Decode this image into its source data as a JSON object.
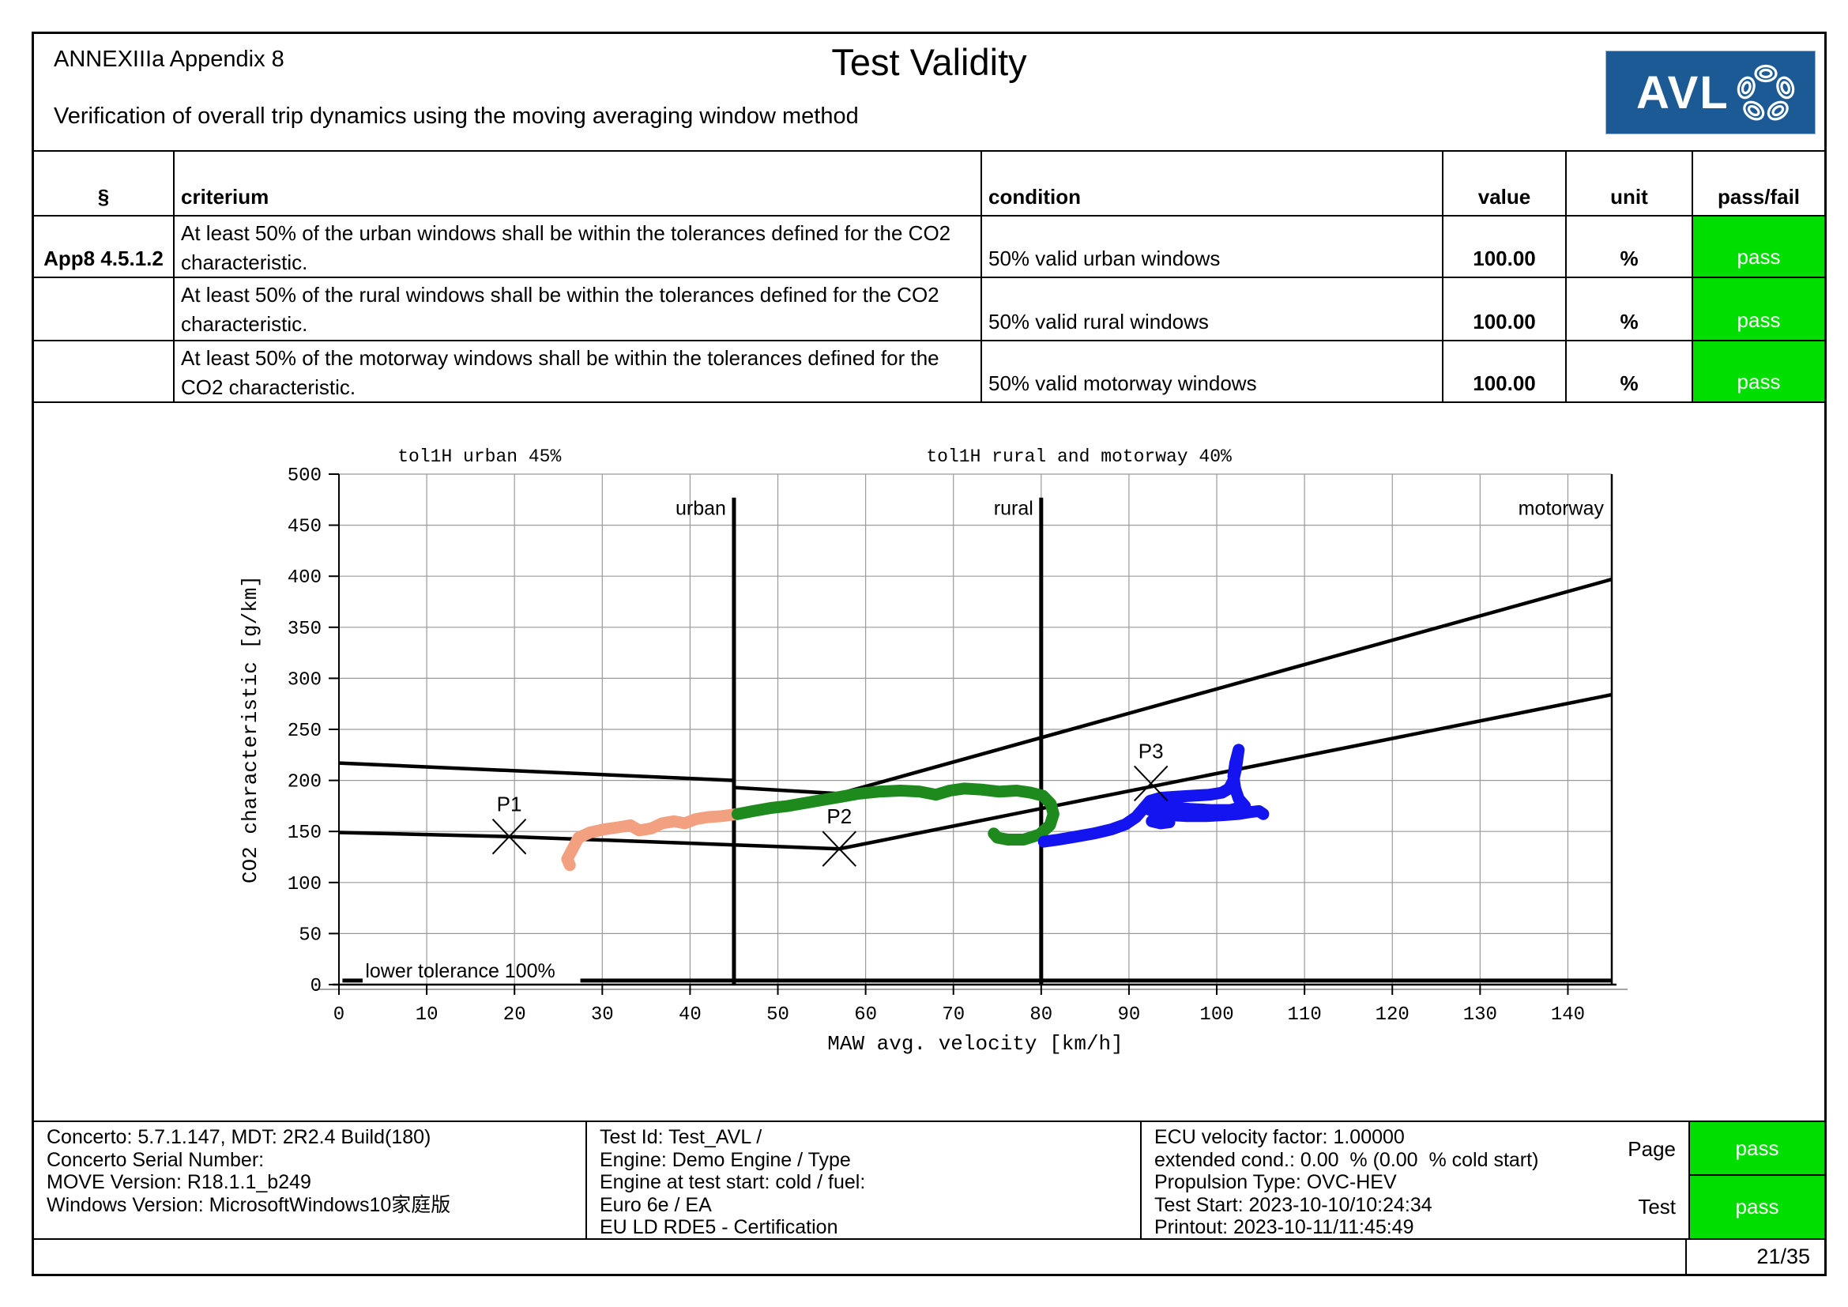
{
  "header": {
    "doc_ref": "ANNEXIIIa Appendix 8",
    "title": "Test Validity",
    "subtitle": "Verification of overall trip dynamics using the moving averaging window method",
    "logo_text": "AVL"
  },
  "colors": {
    "pass_green": "#00DE00",
    "logo_blue": "#1B5A94",
    "urban_points": "#F2A07F",
    "rural_points": "#1E8A1E",
    "motorway_points": "#1414F0",
    "grid_gray": "#9a9a9a"
  },
  "table": {
    "columns": [
      "§",
      "criterium",
      "condition",
      "value",
      "unit",
      "pass/fail"
    ],
    "rows": [
      {
        "section": "App8 4.5.1.2",
        "criterium": "At least 50% of the urban windows shall be within the tolerances defined for the CO2 characteristic.",
        "condition": "50% valid urban windows",
        "value": "100.00",
        "unit": "%",
        "result": "pass"
      },
      {
        "section": "",
        "criterium": "At least 50% of the rural windows shall be within the tolerances defined for the CO2 characteristic.",
        "condition": "50% valid rural windows",
        "value": "100.00",
        "unit": "%",
        "result": "pass"
      },
      {
        "section": "",
        "criterium": "At least 50% of the motorway windows shall be within the tolerances defined for the CO2 characteristic.",
        "condition": "50% valid motorway windows",
        "value": "100.00",
        "unit": "%",
        "result": "pass"
      }
    ]
  },
  "chart_data": {
    "type": "scatter",
    "xlabel": "MAW avg. velocity [km/h]",
    "ylabel": "CO2 characteristic [g/km]",
    "xlim": [
      0,
      145
    ],
    "ylim": [
      0,
      500
    ],
    "xticks": [
      0,
      10,
      20,
      30,
      40,
      50,
      60,
      70,
      80,
      90,
      100,
      110,
      120,
      130,
      140
    ],
    "yticks": [
      0,
      50,
      100,
      150,
      200,
      250,
      300,
      350,
      400,
      450,
      500
    ],
    "grid": true,
    "captions": [
      {
        "text": "tol1H urban 45%",
        "x": 16
      },
      {
        "text": "tol1H rural and motorway 40%",
        "x": 84.3
      }
    ],
    "regions": [
      {
        "label": "urban",
        "boundary_x": 45,
        "draw_line": true
      },
      {
        "label": "rural",
        "boundary_x": 80,
        "draw_line": true
      },
      {
        "label": "motorway",
        "boundary_x": 145,
        "draw_line": false
      }
    ],
    "reference_points": [
      {
        "label": "P1",
        "x": 19.4,
        "y": 145
      },
      {
        "label": "P2",
        "x": 57.0,
        "y": 133
      },
      {
        "label": "P3",
        "x": 92.5,
        "y": 197
      }
    ],
    "lines": [
      {
        "name": "co2-characteristic",
        "points": [
          [
            0,
            149
          ],
          [
            19.4,
            145
          ],
          [
            57,
            133
          ],
          [
            145,
            284
          ]
        ]
      },
      {
        "name": "upper-tolerance-urban",
        "points": [
          [
            0,
            217
          ],
          [
            45,
            200
          ]
        ]
      },
      {
        "name": "upper-tolerance-rural-motorway",
        "points": [
          [
            45,
            193
          ],
          [
            57,
            187
          ],
          [
            145,
            397
          ]
        ]
      }
    ],
    "lower_tolerance": {
      "label": "lower tolerance 100%",
      "label_x": 3,
      "y": 4,
      "segments": [
        [
          0.4,
          2.7
        ],
        [
          27.5,
          145
        ]
      ]
    },
    "series": [
      {
        "name": "urban windows",
        "color": "#F2A07F",
        "points": [
          [
            26.3,
            117
          ],
          [
            26.0,
            123
          ],
          [
            26.5,
            131
          ],
          [
            27.3,
            144
          ],
          [
            28.6,
            149
          ],
          [
            30.2,
            152
          ],
          [
            31.8,
            154
          ],
          [
            33.2,
            156
          ],
          [
            34.2,
            151
          ],
          [
            35.6,
            153
          ],
          [
            36.8,
            158
          ],
          [
            38.2,
            160
          ],
          [
            39.4,
            158
          ],
          [
            40.6,
            162
          ],
          [
            42.0,
            164
          ],
          [
            43.6,
            165
          ],
          [
            45.4,
            167
          ]
        ]
      },
      {
        "name": "rural windows",
        "color": "#1E8A1E",
        "points": [
          [
            45.4,
            167
          ],
          [
            47.2,
            170
          ],
          [
            49.2,
            173
          ],
          [
            51.2,
            175
          ],
          [
            53.2,
            178
          ],
          [
            55.2,
            181
          ],
          [
            57.2,
            184
          ],
          [
            59.2,
            187
          ],
          [
            61.5,
            189
          ],
          [
            64.0,
            190
          ],
          [
            66.2,
            189
          ],
          [
            68.0,
            186
          ],
          [
            69.6,
            190
          ],
          [
            71.2,
            192
          ],
          [
            73.2,
            191
          ],
          [
            75.2,
            189
          ],
          [
            77.2,
            190
          ],
          [
            78.8,
            188
          ],
          [
            80.2,
            185
          ],
          [
            81.1,
            177
          ],
          [
            81.4,
            167
          ],
          [
            81.0,
            156
          ],
          [
            79.8,
            147
          ],
          [
            78.0,
            142
          ],
          [
            76.2,
            142
          ],
          [
            75.0,
            144
          ],
          [
            74.6,
            148
          ]
        ]
      },
      {
        "name": "motorway windows",
        "color": "#1414F0",
        "points": [
          [
            80.3,
            140
          ],
          [
            82.0,
            142
          ],
          [
            84.0,
            145
          ],
          [
            86.0,
            148
          ],
          [
            88.0,
            152
          ],
          [
            89.6,
            157
          ],
          [
            90.8,
            164
          ],
          [
            91.6,
            172
          ],
          [
            92.4,
            180
          ],
          [
            93.6,
            183
          ],
          [
            95.2,
            184
          ],
          [
            97.2,
            185
          ],
          [
            99.2,
            186
          ],
          [
            100.6,
            188
          ],
          [
            101.4,
            192
          ],
          [
            101.9,
            200
          ],
          [
            102.2,
            212
          ],
          [
            102.4,
            224
          ],
          [
            102.5,
            230
          ],
          [
            102.1,
            217
          ],
          [
            101.9,
            204
          ],
          [
            102.1,
            192
          ],
          [
            102.5,
            182
          ],
          [
            103.2,
            175
          ],
          [
            101.6,
            171
          ],
          [
            99.4,
            171
          ],
          [
            97.0,
            172
          ],
          [
            94.8,
            174
          ],
          [
            93.2,
            175
          ],
          [
            92.2,
            172
          ],
          [
            93.0,
            168
          ],
          [
            94.6,
            166
          ],
          [
            96.6,
            165
          ],
          [
            98.8,
            165
          ],
          [
            100.8,
            166
          ],
          [
            102.4,
            167
          ],
          [
            103.8,
            169
          ],
          [
            104.8,
            170
          ],
          [
            105.3,
            167
          ]
        ]
      },
      {
        "name": "motorway windows loop",
        "color": "#1414F0",
        "points": [
          [
            92.6,
            160
          ],
          [
            93.6,
            158
          ],
          [
            94.6,
            159
          ]
        ]
      }
    ]
  },
  "footer": {
    "left_lines": [
      "Concerto: 5.7.1.147, MDT: 2R2.4 Build(180)",
      "Concerto Serial Number:",
      "MOVE Version: R18.1.1_b249",
      "Windows Version: MicrosoftWindows10家庭版"
    ],
    "mid_lines": [
      "Test Id: Test_AVL /",
      "Engine: Demo Engine / Type",
      "Engine at test start: cold / fuel:",
      "Euro 6e / EA",
      "EU LD RDE5 - Certification"
    ],
    "right_lines": [
      "ECU velocity factor: 1.00000",
      "extended cond.: 0.00  % (0.00  % cold start)",
      "Propulsion Type: OVC-HEV",
      "Test Start: 2023-10-10/10:24:34",
      "Printout: 2023-10-11/11:45:49"
    ],
    "page_label": "Page",
    "test_label": "Test",
    "page_result": "pass",
    "test_result": "pass",
    "page_number": "21/35"
  }
}
